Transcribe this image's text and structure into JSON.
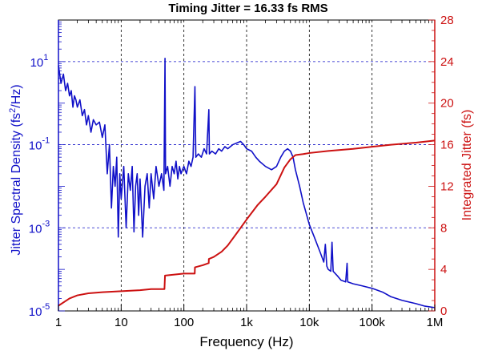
{
  "chart_data": {
    "type": "line",
    "title": "Timing Jitter = 16.33 fs RMS",
    "xlabel": "Frequency (Hz)",
    "xscale": "log",
    "xlim": [
      1,
      1000000
    ],
    "xticks": [
      {
        "value": 1,
        "label": "1"
      },
      {
        "value": 10,
        "label": "10"
      },
      {
        "value": 100,
        "label": "100"
      },
      {
        "value": 1000,
        "label": "1k"
      },
      {
        "value": 10000,
        "label": "10k"
      },
      {
        "value": 100000,
        "label": "100k"
      },
      {
        "value": 1000000,
        "label": "1M"
      }
    ],
    "ylabel_left": {
      "pre": "Jitter Spectral Density (fs",
      "sup": "2",
      "post": "/Hz)"
    },
    "ylabel_right": "Integrated Jitter (fs)",
    "yleft_scale": "log",
    "yleft_lim": [
      1e-05,
      100
    ],
    "yleft_ticks": [
      {
        "value": 1e-05,
        "base": "10",
        "exp": "-5"
      },
      {
        "value": 0.001,
        "base": "10",
        "exp": "-3"
      },
      {
        "value": 0.1,
        "base": "10",
        "exp": "-1"
      },
      {
        "value": 10,
        "base": "10",
        "exp": "1"
      }
    ],
    "yright_lim": [
      0,
      28
    ],
    "yright_ticks": [
      0,
      4,
      8,
      12,
      16,
      20,
      24,
      28
    ],
    "grid": {
      "vertical": [
        10,
        100,
        1000,
        10000,
        100000
      ],
      "horizontal_left": [
        0.001,
        0.1,
        10
      ]
    },
    "colors": {
      "psd": "#1010c8",
      "integrated": "#cc1111",
      "grid_v": "#000000",
      "grid_h": "#1010c8",
      "axis_left": "#1010c8",
      "axis_right": "#cc1111"
    },
    "series": [
      {
        "axis": "left",
        "points": [
          [
            1,
            8
          ],
          [
            1.1,
            3
          ],
          [
            1.2,
            5
          ],
          [
            1.3,
            2
          ],
          [
            1.4,
            3
          ],
          [
            1.5,
            1.5
          ],
          [
            1.6,
            2
          ],
          [
            1.7,
            0.8
          ],
          [
            1.8,
            1.5
          ],
          [
            1.9,
            1.2
          ],
          [
            2,
            0.8
          ],
          [
            2.2,
            1.2
          ],
          [
            2.4,
            0.5
          ],
          [
            2.6,
            0.7
          ],
          [
            2.8,
            0.3
          ],
          [
            3,
            0.5
          ],
          [
            3.3,
            0.2
          ],
          [
            3.6,
            0.4
          ],
          [
            4,
            0.3
          ],
          [
            4.5,
            0.35
          ],
          [
            5,
            0.15
          ],
          [
            5.5,
            0.3
          ],
          [
            6,
            0.02
          ],
          [
            6.5,
            0.1
          ],
          [
            7,
            0.003
          ],
          [
            7.5,
            0.03
          ],
          [
            8,
            0.01
          ],
          [
            8.5,
            0.05
          ],
          [
            9,
            0.0006
          ],
          [
            9.5,
            0.02
          ],
          [
            10,
            0.005
          ],
          [
            11,
            0.03
          ],
          [
            12,
            0.001
          ],
          [
            13,
            0.02
          ],
          [
            14,
            0.008
          ],
          [
            15,
            0.03
          ],
          [
            16,
            0.0008
          ],
          [
            17,
            0.01
          ],
          [
            18,
            0.02
          ],
          [
            19,
            0.002
          ],
          [
            20,
            0.015
          ],
          [
            22,
            0.0006
          ],
          [
            24,
            0.01
          ],
          [
            26,
            0.02
          ],
          [
            28,
            0.003
          ],
          [
            30,
            0.02
          ],
          [
            33,
            0.005
          ],
          [
            36,
            0.03
          ],
          [
            40,
            0.01
          ],
          [
            44,
            0.02
          ],
          [
            48,
            0.008
          ],
          [
            50,
            12
          ],
          [
            51,
            0.02
          ],
          [
            55,
            0.03
          ],
          [
            60,
            0.01
          ],
          [
            65,
            0.03
          ],
          [
            70,
            0.02
          ],
          [
            75,
            0.04
          ],
          [
            80,
            0.015
          ],
          [
            85,
            0.03
          ],
          [
            90,
            0.02
          ],
          [
            95,
            0.025
          ],
          [
            100,
            0.03
          ],
          [
            110,
            0.02
          ],
          [
            120,
            0.04
          ],
          [
            130,
            0.03
          ],
          [
            140,
            0.05
          ],
          [
            150,
            2.5
          ],
          [
            155,
            0.05
          ],
          [
            170,
            0.06
          ],
          [
            190,
            0.05
          ],
          [
            210,
            0.08
          ],
          [
            230,
            0.06
          ],
          [
            250,
            0.7
          ],
          [
            255,
            0.06
          ],
          [
            280,
            0.07
          ],
          [
            320,
            0.06
          ],
          [
            360,
            0.08
          ],
          [
            400,
            0.07
          ],
          [
            450,
            0.09
          ],
          [
            500,
            0.08
          ],
          [
            600,
            0.1
          ],
          [
            700,
            0.11
          ],
          [
            800,
            0.12
          ],
          [
            900,
            0.1
          ],
          [
            1000,
            0.08
          ],
          [
            1200,
            0.07
          ],
          [
            1400,
            0.05
          ],
          [
            1600,
            0.04
          ],
          [
            2000,
            0.03
          ],
          [
            2500,
            0.025
          ],
          [
            3000,
            0.03
          ],
          [
            3500,
            0.05
          ],
          [
            4000,
            0.07
          ],
          [
            4500,
            0.08
          ],
          [
            5000,
            0.07
          ],
          [
            5500,
            0.05
          ],
          [
            6000,
            0.025
          ],
          [
            7000,
            0.01
          ],
          [
            8000,
            0.004
          ],
          [
            10000,
            0.0012
          ],
          [
            12000,
            0.0006
          ],
          [
            15000,
            0.00025
          ],
          [
            17000,
            0.00015
          ],
          [
            18000,
            0.0004
          ],
          [
            19000,
            0.00012
          ],
          [
            20000,
            0.0001
          ],
          [
            22000,
            9e-05
          ],
          [
            23000,
            0.00045
          ],
          [
            24000,
            9e-05
          ],
          [
            28000,
            7e-05
          ],
          [
            32000,
            5.5e-05
          ],
          [
            38000,
            5e-05
          ],
          [
            40000,
            0.00014
          ],
          [
            41000,
            5e-05
          ],
          [
            50000,
            4.5e-05
          ],
          [
            70000,
            4e-05
          ],
          [
            100000,
            3.5e-05
          ],
          [
            150000,
            2.8e-05
          ],
          [
            200000,
            2.2e-05
          ],
          [
            300000,
            1.8e-05
          ],
          [
            500000,
            1.5e-05
          ],
          [
            700000,
            1.3e-05
          ],
          [
            1000000,
            1.2e-05
          ]
        ]
      },
      {
        "axis": "right",
        "points": [
          [
            1,
            0.5
          ],
          [
            1.5,
            1.2
          ],
          [
            2,
            1.5
          ],
          [
            3,
            1.7
          ],
          [
            5,
            1.8
          ],
          [
            10,
            1.9
          ],
          [
            20,
            2.0
          ],
          [
            30,
            2.1
          ],
          [
            49,
            2.1
          ],
          [
            50,
            3.4
          ],
          [
            100,
            3.6
          ],
          [
            149,
            3.6
          ],
          [
            150,
            4.2
          ],
          [
            200,
            4.4
          ],
          [
            249,
            4.6
          ],
          [
            250,
            5.0
          ],
          [
            300,
            5.2
          ],
          [
            400,
            5.7
          ],
          [
            500,
            6.3
          ],
          [
            700,
            7.5
          ],
          [
            1000,
            8.8
          ],
          [
            1500,
            10.2
          ],
          [
            2000,
            11.0
          ],
          [
            3000,
            12.2
          ],
          [
            4000,
            13.8
          ],
          [
            5000,
            14.6
          ],
          [
            6000,
            15.0
          ],
          [
            8000,
            15.1
          ],
          [
            10000,
            15.2
          ],
          [
            20000,
            15.4
          ],
          [
            50000,
            15.6
          ],
          [
            100000,
            15.8
          ],
          [
            200000,
            16.0
          ],
          [
            500000,
            16.2
          ],
          [
            1000000,
            16.4
          ]
        ]
      }
    ]
  }
}
